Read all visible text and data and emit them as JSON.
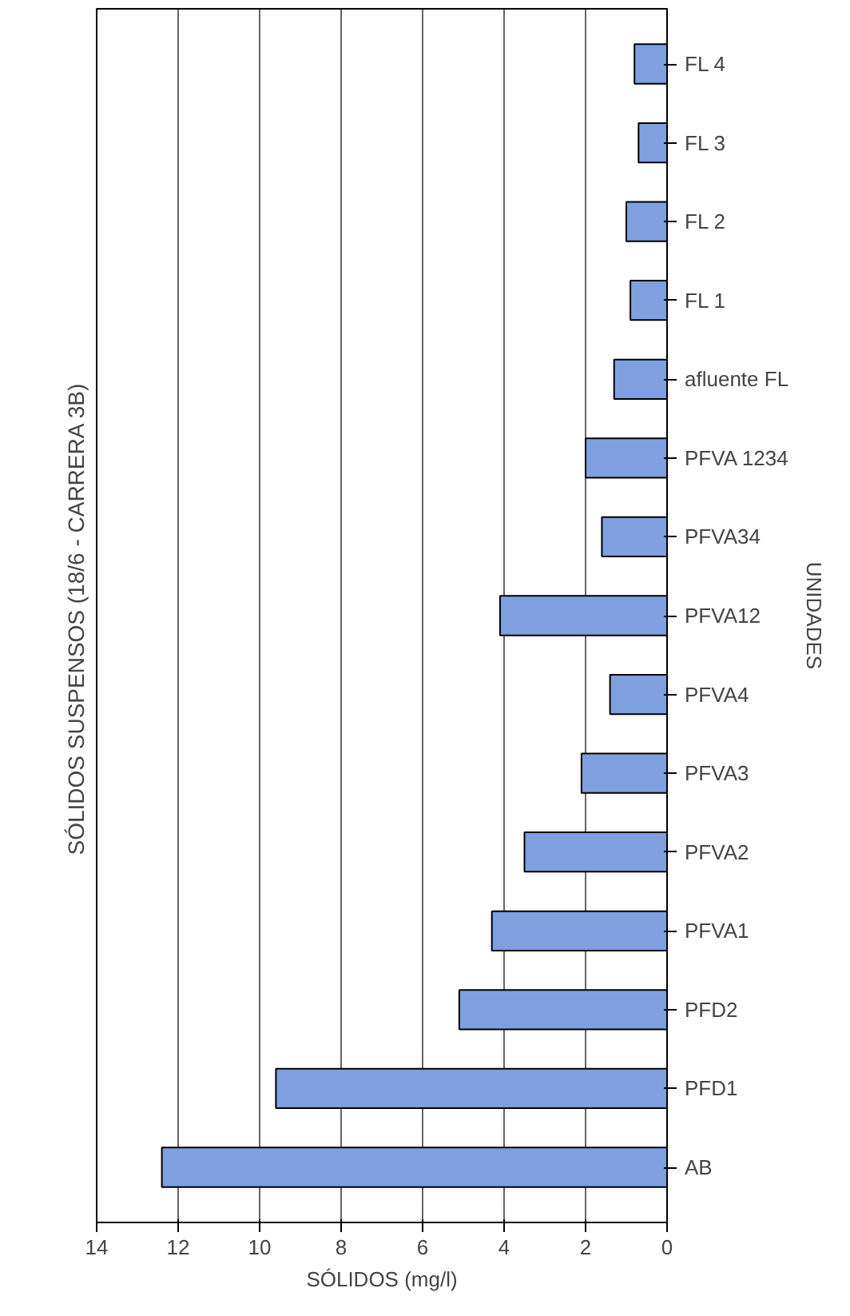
{
  "chart_data": {
    "type": "bar",
    "orientation": "horizontal",
    "title": "SÓLIDOS SUSPENSOS  (18/6 - CARRERA 3B)",
    "xlabel": "SÓLIDOS (mg/l)",
    "ylabel": "UNIDADES",
    "categories": [
      "FL 4",
      "FL 3",
      "FL 2",
      "FL 1",
      "afluente FL",
      "PFVA 1234",
      "PFVA34",
      "PFVA12",
      "PFVA4",
      "PFVA3",
      "PFVA2",
      "PFVA1",
      "PFD2",
      "PFD1",
      "AB"
    ],
    "values": [
      0.8,
      0.7,
      1.0,
      0.9,
      1.3,
      2.0,
      1.6,
      4.1,
      1.4,
      2.1,
      3.5,
      4.3,
      5.1,
      9.6,
      12.4
    ],
    "color": "#7f9fdf",
    "xlim": [
      14,
      0
    ],
    "xticks": [
      14,
      12,
      10,
      8,
      6,
      4,
      2,
      0
    ],
    "grid": "x"
  }
}
